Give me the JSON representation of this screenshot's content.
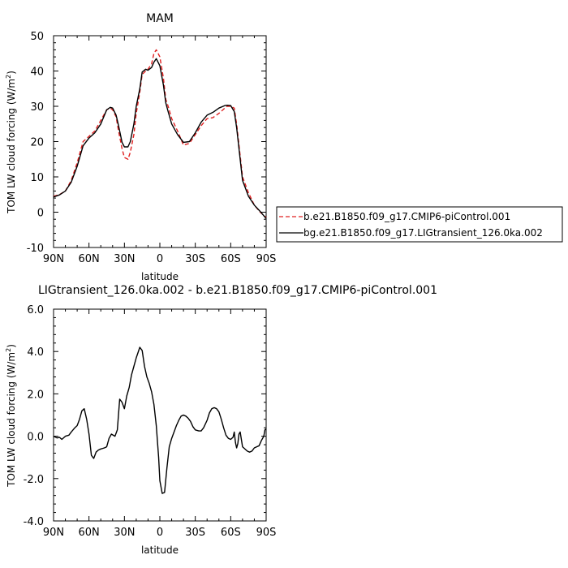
{
  "chart_data": [
    {
      "type": "line",
      "title": "MAM",
      "xlabel": "latitude",
      "ylabel": "TOM LW cloud forcing (W/m",
      "ylabel_sup": "2",
      "ylabel_close": ")",
      "xlim": [
        90,
        -90
      ],
      "ylim": [
        -10,
        50
      ],
      "x_tick_values": [
        90,
        60,
        30,
        0,
        -30,
        -60,
        -90
      ],
      "x_tick_labels": [
        "90N",
        "60N",
        "30N",
        "0",
        "30S",
        "60S",
        "90S"
      ],
      "y_tick_values": [
        -10,
        0,
        10,
        20,
        30,
        40,
        50
      ],
      "y_tick_labels": [
        "-10",
        "0",
        "10",
        "20",
        "30",
        "40",
        "50"
      ],
      "grid": false,
      "legend_position": "right",
      "x": [
        90,
        85,
        80,
        75,
        70,
        65,
        60,
        55,
        50,
        45,
        42,
        40,
        37,
        35,
        32,
        30,
        27,
        25,
        22,
        20,
        17,
        15,
        12,
        10,
        7,
        5,
        3,
        0,
        -3,
        -5,
        -7,
        -10,
        -15,
        -20,
        -25,
        -30,
        -35,
        -40,
        -45,
        -50,
        -55,
        -57,
        -60,
        -63,
        -65,
        -70,
        -75,
        -80,
        -85,
        -90
      ],
      "series": [
        {
          "name": "b.e21.B1850.f09_g17.CMIP6-piControl.001",
          "color": "#e02020",
          "dash": "dashed",
          "values": [
            4.5,
            5.0,
            6.0,
            9.0,
            14.0,
            20.0,
            21.5,
            23.0,
            26.0,
            29.0,
            29.5,
            29.0,
            27.0,
            23.0,
            18.0,
            15.5,
            15.0,
            17.0,
            22.0,
            28.0,
            34.0,
            39.0,
            40.0,
            40.5,
            42.0,
            45.0,
            46.0,
            44.0,
            38.0,
            32.0,
            30.0,
            26.5,
            23.0,
            19.0,
            19.5,
            22.0,
            24.5,
            26.5,
            26.8,
            28.0,
            29.5,
            30.0,
            30.0,
            29.5,
            25.0,
            10.0,
            5.5,
            2.0,
            0.0,
            -1.5
          ]
        },
        {
          "name": "bg.e21.B1850.f09_g17.LIGtransient_126.0ka.002",
          "color": "#000000",
          "dash": "solid",
          "values": [
            4.3,
            4.9,
            6.0,
            8.5,
            13.0,
            18.8,
            21.0,
            22.5,
            25.0,
            29.0,
            29.7,
            29.5,
            27.5,
            24.5,
            19.8,
            18.5,
            18.5,
            20.0,
            25.0,
            30.0,
            35.0,
            39.7,
            40.5,
            40.2,
            41.0,
            42.5,
            43.5,
            41.5,
            36.0,
            31.0,
            28.5,
            25.0,
            22.0,
            19.8,
            20.0,
            22.5,
            25.5,
            27.5,
            28.3,
            29.5,
            30.2,
            30.3,
            30.2,
            28.5,
            24.0,
            9.0,
            4.5,
            2.0,
            0.2,
            -1.8
          ]
        }
      ]
    },
    {
      "type": "line",
      "title": "LIGtransient_126.0ka.002 - b.e21.B1850.f09_g17.CMIP6-piControl.001",
      "xlabel": "latitude",
      "ylabel": "TOM LW cloud forcing (W/m",
      "ylabel_sup": "2",
      "ylabel_close": ")",
      "xlim": [
        90,
        -90
      ],
      "ylim": [
        -4,
        6
      ],
      "x_tick_values": [
        90,
        60,
        30,
        0,
        -30,
        -60,
        -90
      ],
      "x_tick_labels": [
        "90N",
        "60N",
        "30N",
        "0",
        "30S",
        "60S",
        "90S"
      ],
      "y_tick_values": [
        -4,
        -2,
        0,
        2,
        4,
        6
      ],
      "y_tick_labels": [
        "-4.0",
        "-2.0",
        "0.0",
        "2.0",
        "4.0",
        "6.0"
      ],
      "grid": false,
      "x": [
        90,
        87,
        85,
        83,
        80,
        77,
        75,
        72,
        70,
        68,
        66,
        64,
        62,
        60,
        58,
        56,
        54,
        52,
        50,
        47,
        45,
        43,
        41,
        38,
        36,
        34,
        32,
        30,
        28,
        26,
        24,
        22,
        20,
        17,
        15,
        13,
        11,
        9,
        7,
        5,
        3,
        1,
        0,
        -2,
        -4,
        -6,
        -8,
        -10,
        -12,
        -14,
        -16,
        -18,
        -20,
        -22,
        -24,
        -26,
        -28,
        -30,
        -33,
        -35,
        -37,
        -40,
        -42,
        -44,
        -46,
        -48,
        -50,
        -52,
        -54,
        -56,
        -58,
        -60,
        -62,
        -63,
        -64,
        -65,
        -66,
        -67,
        -68,
        -70,
        -72,
        -74,
        -76,
        -78,
        -80,
        -82,
        -84,
        -86,
        -88,
        -89,
        -90
      ],
      "series": [
        {
          "name": "",
          "color": "#000000",
          "dash": "solid",
          "values": [
            0.0,
            -0.08,
            -0.05,
            -0.15,
            0.0,
            0.05,
            0.2,
            0.4,
            0.5,
            0.8,
            1.2,
            1.3,
            0.8,
            0.1,
            -0.9,
            -1.05,
            -0.75,
            -0.65,
            -0.6,
            -0.55,
            -0.5,
            -0.1,
            0.1,
            0.0,
            0.3,
            1.75,
            1.6,
            1.3,
            1.9,
            2.3,
            2.9,
            3.3,
            3.7,
            4.2,
            4.05,
            3.3,
            2.8,
            2.5,
            2.1,
            1.5,
            0.5,
            -1.0,
            -2.1,
            -2.7,
            -2.65,
            -1.5,
            -0.5,
            -0.1,
            0.2,
            0.5,
            0.75,
            0.95,
            1.0,
            0.95,
            0.85,
            0.7,
            0.45,
            0.3,
            0.25,
            0.25,
            0.4,
            0.75,
            1.1,
            1.3,
            1.35,
            1.3,
            1.15,
            0.8,
            0.4,
            0.05,
            -0.1,
            -0.15,
            -0.05,
            0.2,
            -0.3,
            -0.55,
            -0.35,
            0.1,
            0.2,
            -0.5,
            -0.6,
            -0.7,
            -0.75,
            -0.7,
            -0.55,
            -0.5,
            -0.45,
            -0.2,
            0.0,
            0.3,
            0.35
          ]
        }
      ]
    }
  ]
}
